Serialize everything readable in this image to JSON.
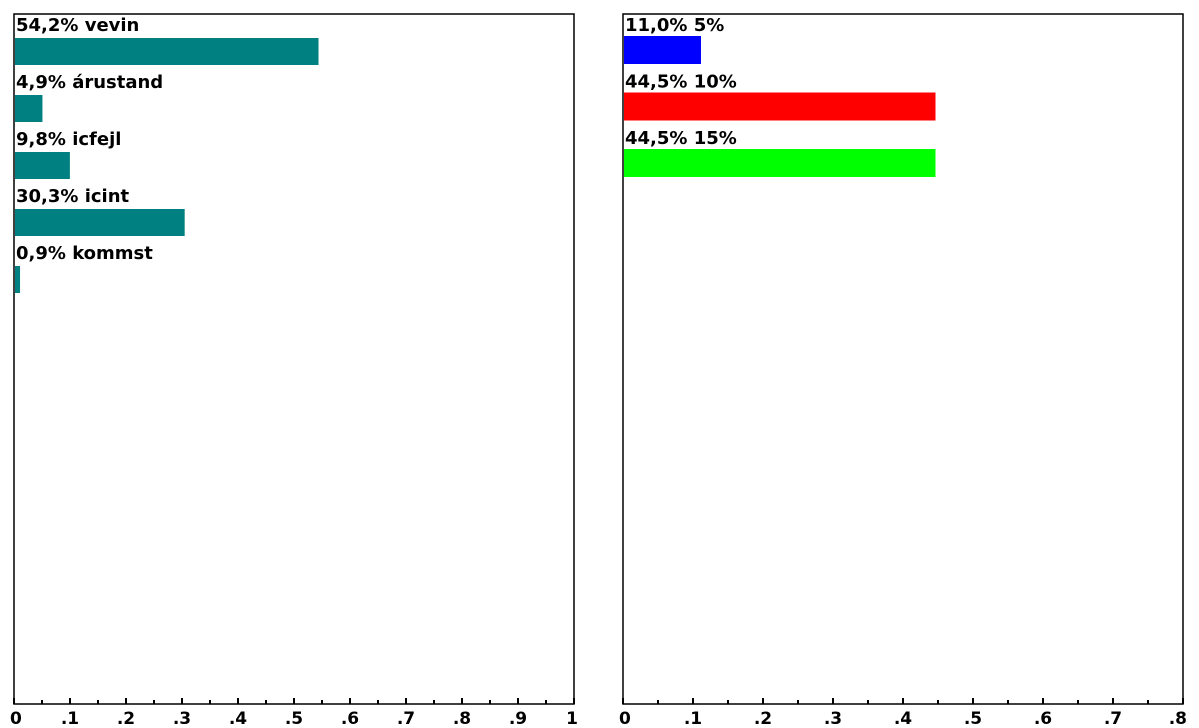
{
  "chart_data": [
    {
      "type": "bar",
      "orientation": "horizontal",
      "categories": [
        "vevin",
        "árustand",
        "icfejl",
        "icint",
        "kommst"
      ],
      "values": [
        0.542,
        0.049,
        0.098,
        0.303,
        0.009
      ],
      "labels": [
        "54,2% vevin",
        "4,9% árustand",
        "9,8% icfejl",
        "30,3% icint",
        "0,9% kommst"
      ],
      "colors": [
        "#008080",
        "#008080",
        "#008080",
        "#008080",
        "#008080"
      ],
      "xlim": [
        0,
        1
      ],
      "ticks": [
        "0",
        ".1",
        ".2",
        ".3",
        ".4",
        ".5",
        ".6",
        ".7",
        ".8",
        ".9",
        "1"
      ],
      "title": "",
      "xlabel": "",
      "ylabel": "",
      "grid": false
    },
    {
      "type": "bar",
      "orientation": "horizontal",
      "categories": [
        "5%",
        "10%",
        "15%"
      ],
      "values": [
        0.11,
        0.445,
        0.445
      ],
      "labels": [
        "11,0% 5%",
        "44,5% 10%",
        "44,5% 15%"
      ],
      "colors": [
        "#0000ff",
        "#ff0000",
        "#00ff00"
      ],
      "xlim": [
        0,
        0.8
      ],
      "ticks": [
        "0",
        ".1",
        ".2",
        ".3",
        ".4",
        ".5",
        ".6",
        ".7",
        ".8"
      ],
      "title": "",
      "xlabel": "",
      "ylabel": "",
      "grid": false
    }
  ]
}
